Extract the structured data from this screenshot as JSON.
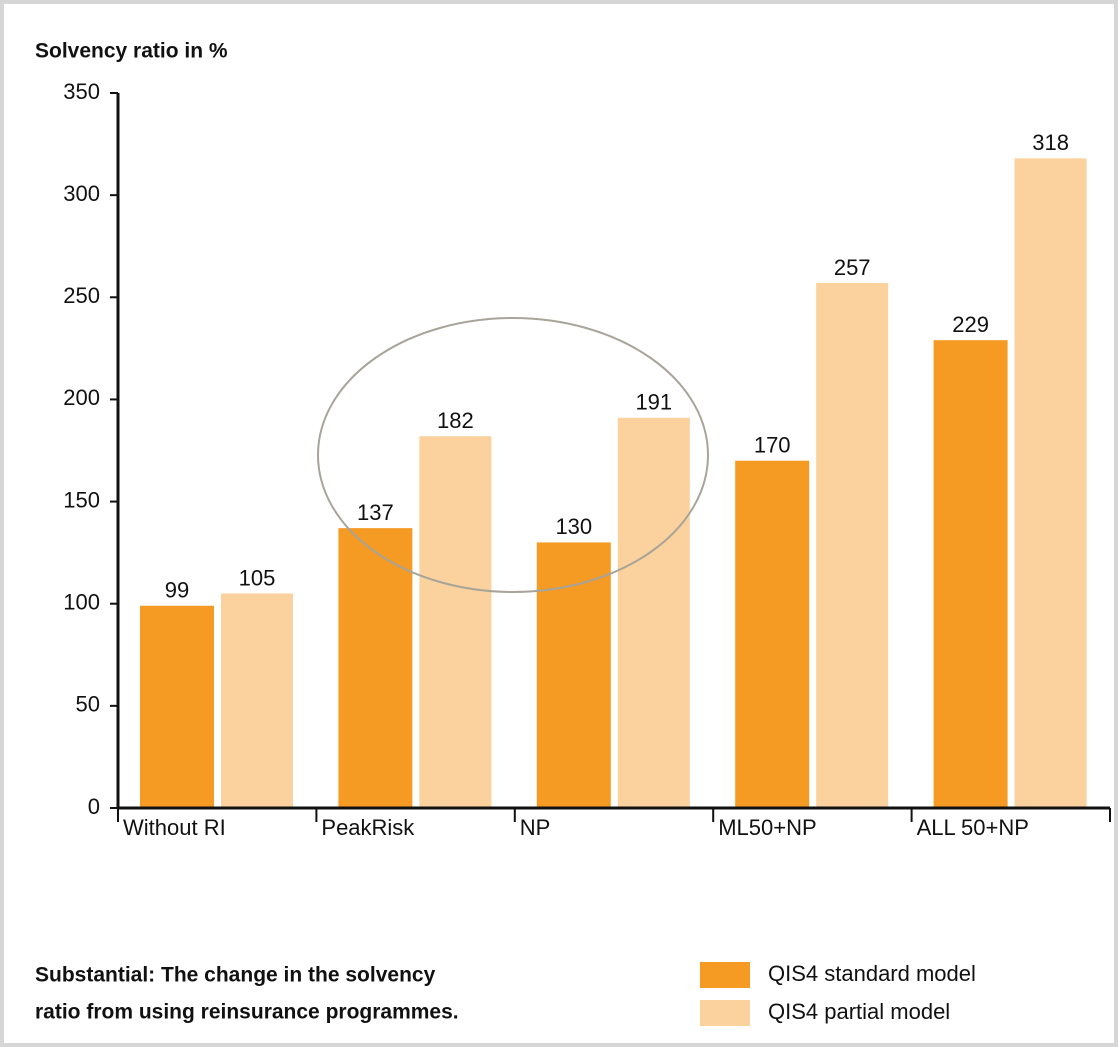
{
  "chart_data": {
    "type": "bar",
    "title": "Solvency ratio in %",
    "categories": [
      "Without RI",
      "PeakRisk",
      "NP",
      "ML50+NP",
      "ALL 50+NP"
    ],
    "series": [
      {
        "name": "QIS4 standard model",
        "color": "#f59a23",
        "values": [
          99,
          137,
          130,
          170,
          229
        ]
      },
      {
        "name": "QIS4 partial model",
        "color": "#fbd19d",
        "values": [
          105,
          182,
          191,
          257,
          318
        ]
      }
    ],
    "ylim": [
      0,
      350
    ],
    "yticks": [
      0,
      50,
      100,
      150,
      200,
      250,
      300,
      350
    ],
    "grid": false,
    "caption": [
      "Substantial: The change in the solvency",
      "ratio from using reinsurance programmes."
    ]
  }
}
